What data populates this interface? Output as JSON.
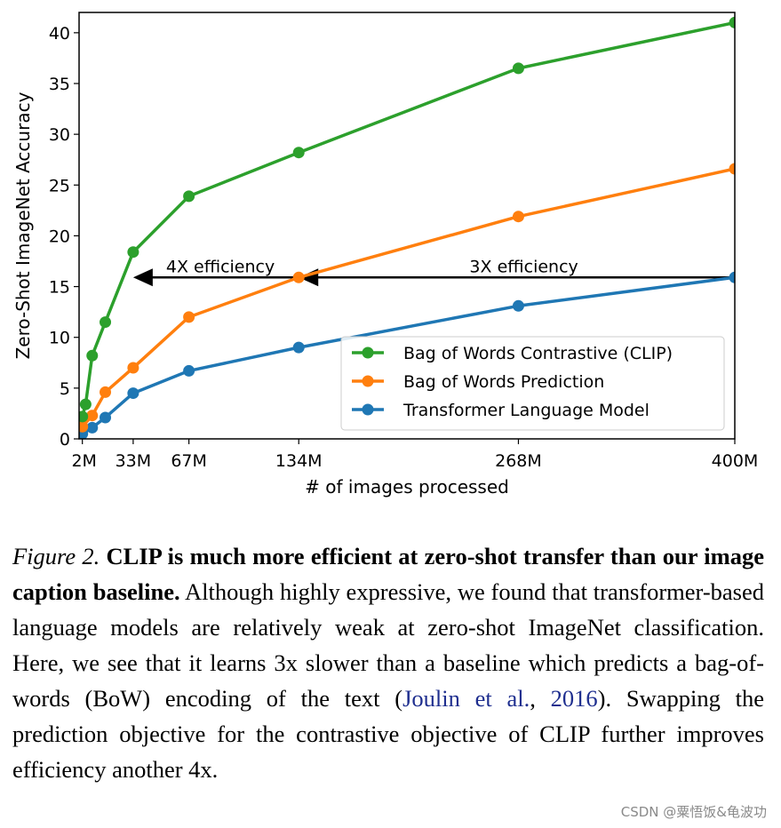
{
  "chart_data": {
    "type": "line",
    "xlabel": "# of images processed",
    "ylabel": "Zero-Shot ImageNet Accuracy",
    "xlim": [
      0,
      400
    ],
    "ylim": [
      0,
      42
    ],
    "x_ticks": [
      {
        "value": 2,
        "label": "2M"
      },
      {
        "value": 33,
        "label": "33M"
      },
      {
        "value": 67,
        "label": "67M"
      },
      {
        "value": 134,
        "label": "134M"
      },
      {
        "value": 268,
        "label": "268M"
      },
      {
        "value": 400,
        "label": "400M"
      }
    ],
    "y_ticks": [
      0,
      5,
      10,
      15,
      20,
      25,
      30,
      35,
      40
    ],
    "grid": false,
    "legend_position": "lower-right",
    "series": [
      {
        "name": "Bag of Words Contrastive (CLIP)",
        "color": "#2ca02c",
        "x": [
          2,
          4,
          8,
          16,
          33,
          67,
          134,
          268,
          400
        ],
        "y": [
          2.2,
          3.4,
          8.2,
          11.5,
          18.4,
          23.9,
          28.2,
          36.5,
          41.0
        ]
      },
      {
        "name": "Bag of Words Prediction",
        "color": "#ff7f0e",
        "x": [
          2,
          8,
          16,
          33,
          67,
          134,
          268,
          400
        ],
        "y": [
          1.2,
          2.3,
          4.6,
          7.0,
          12.0,
          15.9,
          21.9,
          26.6
        ]
      },
      {
        "name": "Transformer Language Model",
        "color": "#1f77b4",
        "x": [
          2,
          8,
          16,
          33,
          67,
          134,
          268,
          400
        ],
        "y": [
          0.5,
          1.1,
          2.1,
          4.5,
          6.7,
          9.0,
          13.1,
          15.9
        ]
      }
    ],
    "annotations": [
      {
        "text": "4X efficiency",
        "from_x": 134,
        "to_x": 33,
        "y": 15.9
      },
      {
        "text": "3X efficiency",
        "from_x": 400,
        "to_x": 134,
        "y": 15.9
      }
    ]
  },
  "caption": {
    "figure_label": "Figure 2.",
    "bold_text": "CLIP is much more efficient at zero-shot transfer than our image caption baseline.",
    "body_1": "Although highly expressive, we found that transformer-based language models are relatively weak at zero-shot ImageNet classification. Here, we see that it learns 3x slower than a baseline which predicts a bag-of-words (BoW) encoding of the text (",
    "cite_author": "Joulin et al.",
    "cite_sep": ", ",
    "cite_year": "2016",
    "body_2": "). Swapping the prediction objective for the contrastive objective of CLIP further improves efficiency another 4x."
  },
  "watermark": "CSDN @粟悟饭&龟波功"
}
